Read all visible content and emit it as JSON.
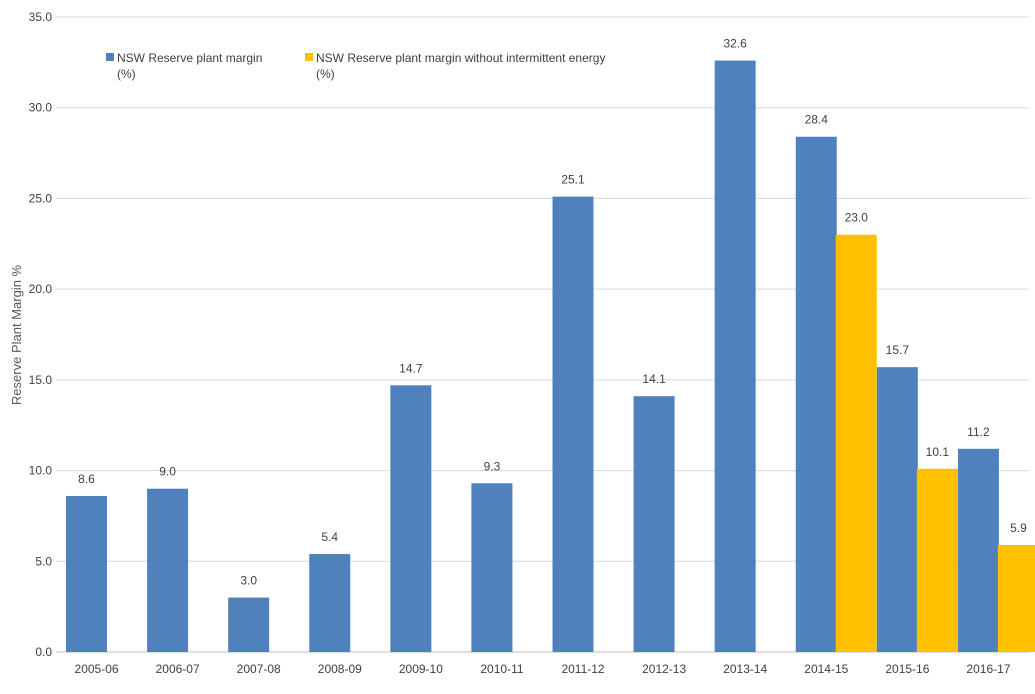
{
  "chart_data": {
    "type": "bar",
    "title": "",
    "xlabel": "",
    "ylabel": "Reserve Plant Margin %",
    "ylim": [
      0,
      35
    ],
    "yticks": [
      "0.0",
      "5.0",
      "10.0",
      "15.0",
      "20.0",
      "25.0",
      "30.0",
      "35.0"
    ],
    "grid": true,
    "legend_position": "top-left",
    "categories": [
      "2005-06",
      "2006-07",
      "2007-08",
      "2008-09",
      "2009-10",
      "2010-11",
      "2011-12",
      "2012-13",
      "2013-14",
      "2014-15",
      "2015-16",
      "2016-17"
    ],
    "series": [
      {
        "name_line1": "NSW Reserve plant margin",
        "name_line2": "(%)",
        "color": "#4F81BD",
        "values": [
          8.6,
          9.0,
          3.0,
          5.4,
          14.7,
          9.3,
          25.1,
          14.1,
          32.6,
          28.4,
          15.7,
          11.2
        ],
        "labels": [
          "8.6",
          "9.0",
          "3.0",
          "5.4",
          "14.7",
          "9.3",
          "25.1",
          "14.1",
          "32.6",
          "28.4",
          "15.7",
          "11.2"
        ]
      },
      {
        "name_line1": "NSW Reserve plant margin without intermittent energy",
        "name_line2": "(%)",
        "color": "#FFC000",
        "values": [
          null,
          null,
          null,
          null,
          null,
          null,
          null,
          null,
          null,
          23.0,
          10.1,
          5.9
        ],
        "labels": [
          null,
          null,
          null,
          null,
          null,
          null,
          null,
          null,
          null,
          "23.0",
          "10.1",
          "5.9"
        ]
      }
    ]
  }
}
